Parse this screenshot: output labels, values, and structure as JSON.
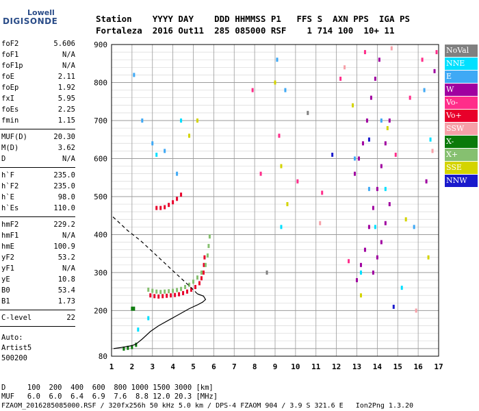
{
  "logo": {
    "top": "Lowell",
    "main": "DIGISONDE"
  },
  "header": {
    "labels": "Station    YYYY DAY    DDD HHMMSS P1   FFS S  AXN PPS  IGA PS",
    "values": "Fortaleza  2016 Out11  285 085000 RSF    1 714 100  10+ 11"
  },
  "params_group1": [
    {
      "name": "foF2",
      "value": "5.606"
    },
    {
      "name": "foF1",
      "value": "N/A"
    },
    {
      "name": "foF1p",
      "value": "N/A"
    },
    {
      "name": "foE",
      "value": "2.11"
    },
    {
      "name": "foEp",
      "value": "1.92"
    },
    {
      "name": "fxI",
      "value": "5.95"
    },
    {
      "name": "foEs",
      "value": "2.25"
    },
    {
      "name": "fmin",
      "value": "1.15"
    }
  ],
  "params_group2": [
    {
      "name": "MUF(D)",
      "value": "20.30"
    },
    {
      "name": "M(D)",
      "value": "3.62"
    },
    {
      "name": "D",
      "value": "N/A"
    }
  ],
  "params_group3": [
    {
      "name": "h`F",
      "value": "235.0"
    },
    {
      "name": "h`F2",
      "value": "235.0"
    },
    {
      "name": "h`E",
      "value": "98.0"
    },
    {
      "name": "h`Es",
      "value": "110.0"
    }
  ],
  "params_group4": [
    {
      "name": "hmF2",
      "value": "229.2"
    },
    {
      "name": "hmF1",
      "value": "N/A"
    },
    {
      "name": "hmE",
      "value": "100.9"
    },
    {
      "name": "yF2",
      "value": "53.2"
    },
    {
      "name": "yF1",
      "value": "N/A"
    },
    {
      "name": "yE",
      "value": "10.8"
    },
    {
      "name": "B0",
      "value": "53.4"
    },
    {
      "name": "B1",
      "value": "1.73"
    }
  ],
  "clevel": {
    "name": "C-level",
    "value": "22"
  },
  "auto": [
    "Auto:",
    "Artist5",
    "500200"
  ],
  "legend": [
    {
      "label": "NoVal",
      "bg": "#808080",
      "fg": "#ffffff"
    },
    {
      "label": "NNE",
      "bg": "#00e0ff",
      "fg": "#ffffff"
    },
    {
      "label": "E",
      "bg": "#3fa9f5",
      "fg": "#ffffff"
    },
    {
      "label": "W",
      "bg": "#a000a0",
      "fg": "#ffffff"
    },
    {
      "label": "Vo-",
      "bg": "#ff2d8a",
      "fg": "#ffffff"
    },
    {
      "label": "Vo+",
      "bg": "#e8002a",
      "fg": "#ffffff"
    },
    {
      "label": "SSW",
      "bg": "#f6a0a8",
      "fg": "#ffffff"
    },
    {
      "label": "X-",
      "bg": "#0a7a0a",
      "fg": "#ffffff"
    },
    {
      "label": "X+",
      "bg": "#86c070",
      "fg": "#ffffff"
    },
    {
      "label": "SSE",
      "bg": "#d4d400",
      "fg": "#ffffff"
    },
    {
      "label": "NNW",
      "bg": "#1a1acc",
      "fg": "#ffffff"
    }
  ],
  "footer": {
    "d_row": "D     100  200  400  600  800 1000 1500 3000 [km]",
    "muf_row": "MUF   6.0  6.0  6.4  6.9  7.6  8.8 12.0 20.3 [MHz]",
    "file_row": "FZAOM_2016285085000.RSF / 320fx256h 50 kHz 5.0 km / DPS-4 FZAOM 904 / 3.9 S 321.6 E   Ion2Png 1.3.20"
  },
  "chart_data": {
    "type": "scatter",
    "title": "",
    "xlabel": "",
    "ylabel": "",
    "xlim": [
      1,
      17
    ],
    "ylim": [
      80,
      900
    ],
    "x_ticks": [
      1,
      2,
      3,
      4,
      5,
      6,
      7,
      8,
      9,
      10,
      11,
      12,
      13,
      14,
      15,
      16,
      17
    ],
    "y_ticks": [
      200,
      300,
      400,
      500,
      600,
      700,
      800,
      900
    ],
    "y_tick_labels": [
      "200",
      "300",
      "400",
      "500",
      "600",
      "700",
      "800",
      "900"
    ],
    "x_tick_labels": [
      "1",
      "2",
      "3",
      "4",
      "5",
      "6",
      "7",
      "8",
      "9",
      "10",
      "11",
      "12",
      "13",
      "14",
      "15",
      "16",
      "17"
    ],
    "y_bottom_label": "80",
    "grid": true,
    "series": [
      {
        "name": "Vo+",
        "color": "#e8002a",
        "points": [
          [
            2.9,
            240
          ],
          [
            3.1,
            238
          ],
          [
            3.3,
            237
          ],
          [
            3.5,
            238
          ],
          [
            3.7,
            239
          ],
          [
            3.9,
            240
          ],
          [
            4.1,
            241
          ],
          [
            4.3,
            243
          ],
          [
            4.5,
            246
          ],
          [
            4.7,
            250
          ],
          [
            4.9,
            255
          ],
          [
            5.1,
            262
          ],
          [
            5.3,
            272
          ],
          [
            5.4,
            285
          ],
          [
            5.5,
            300
          ],
          [
            5.52,
            320
          ],
          [
            5.55,
            340
          ],
          [
            3.2,
            470
          ],
          [
            3.4,
            470
          ],
          [
            3.6,
            472
          ],
          [
            3.8,
            478
          ],
          [
            4.0,
            485
          ],
          [
            4.2,
            494
          ],
          [
            4.4,
            505
          ]
        ]
      },
      {
        "name": "X+",
        "color": "#86c070",
        "points": [
          [
            2.8,
            255
          ],
          [
            3.0,
            252
          ],
          [
            3.2,
            250
          ],
          [
            3.4,
            249
          ],
          [
            3.6,
            250
          ],
          [
            3.8,
            251
          ],
          [
            4.0,
            252
          ],
          [
            4.2,
            254
          ],
          [
            4.4,
            257
          ],
          [
            4.6,
            262
          ],
          [
            4.8,
            268
          ],
          [
            5.0,
            276
          ],
          [
            5.2,
            287
          ],
          [
            5.4,
            300
          ],
          [
            5.6,
            320
          ],
          [
            5.7,
            345
          ],
          [
            5.75,
            370
          ],
          [
            5.8,
            395
          ]
        ]
      },
      {
        "name": "X-",
        "color": "#0a7a0a",
        "points": [
          [
            2.0,
            205
          ],
          [
            2.1,
            205
          ],
          [
            1.6,
            100
          ],
          [
            1.8,
            102
          ],
          [
            2.0,
            104
          ],
          [
            2.2,
            110
          ]
        ]
      },
      {
        "name": "NNE",
        "color": "#00e0ff",
        "points": [
          [
            2.3,
            150
          ],
          [
            2.8,
            180
          ],
          [
            3.2,
            610
          ],
          [
            4.4,
            700
          ],
          [
            9.3,
            420
          ],
          [
            13.2,
            300
          ],
          [
            13.9,
            420
          ],
          [
            14.4,
            520
          ],
          [
            15.2,
            260
          ],
          [
            16.6,
            650
          ]
        ]
      },
      {
        "name": "E",
        "color": "#3fa9f5",
        "points": [
          [
            2.1,
            820
          ],
          [
            2.5,
            700
          ],
          [
            3.0,
            640
          ],
          [
            3.6,
            620
          ],
          [
            4.2,
            560
          ],
          [
            9.1,
            860
          ],
          [
            9.5,
            780
          ],
          [
            12.9,
            600
          ],
          [
            13.6,
            520
          ],
          [
            14.2,
            700
          ],
          [
            15.8,
            420
          ],
          [
            16.3,
            780
          ]
        ]
      },
      {
        "name": "W",
        "color": "#a000a0",
        "points": [
          [
            12.9,
            560
          ],
          [
            13.1,
            600
          ],
          [
            13.3,
            640
          ],
          [
            13.5,
            700
          ],
          [
            13.7,
            760
          ],
          [
            13.9,
            810
          ],
          [
            14.1,
            860
          ],
          [
            13.0,
            280
          ],
          [
            13.2,
            320
          ],
          [
            13.4,
            360
          ],
          [
            13.6,
            420
          ],
          [
            13.8,
            470
          ],
          [
            14.0,
            520
          ],
          [
            14.2,
            580
          ],
          [
            14.4,
            640
          ],
          [
            14.6,
            700
          ],
          [
            13.8,
            300
          ],
          [
            14.0,
            340
          ],
          [
            14.2,
            380
          ],
          [
            14.4,
            430
          ],
          [
            14.6,
            480
          ],
          [
            16.4,
            540
          ],
          [
            16.8,
            830
          ]
        ]
      },
      {
        "name": "Vo-",
        "color": "#ff2d8a",
        "points": [
          [
            7.9,
            780
          ],
          [
            8.3,
            560
          ],
          [
            9.2,
            660
          ],
          [
            10.1,
            540
          ],
          [
            11.3,
            510
          ],
          [
            12.2,
            810
          ],
          [
            12.6,
            330
          ],
          [
            13.4,
            880
          ],
          [
            14.9,
            610
          ],
          [
            15.6,
            760
          ],
          [
            16.2,
            860
          ],
          [
            16.9,
            880
          ]
        ]
      },
      {
        "name": "SSW",
        "color": "#f6a0a8",
        "points": [
          [
            11.2,
            430
          ],
          [
            12.4,
            840
          ],
          [
            14.7,
            890
          ],
          [
            15.9,
            200
          ],
          [
            16.7,
            620
          ]
        ]
      },
      {
        "name": "SSE",
        "color": "#d4d400",
        "points": [
          [
            4.8,
            660
          ],
          [
            5.2,
            700
          ],
          [
            9.0,
            800
          ],
          [
            9.3,
            580
          ],
          [
            9.6,
            480
          ],
          [
            12.8,
            740
          ],
          [
            13.2,
            240
          ],
          [
            14.5,
            680
          ],
          [
            15.4,
            440
          ],
          [
            16.5,
            340
          ]
        ]
      },
      {
        "name": "NNW",
        "color": "#1a1acc",
        "points": [
          [
            11.8,
            610
          ],
          [
            13.6,
            650
          ],
          [
            14.8,
            210
          ]
        ]
      },
      {
        "name": "NoVal",
        "color": "#808080",
        "points": [
          [
            8.6,
            300
          ],
          [
            10.6,
            720
          ]
        ]
      }
    ],
    "profile_solid": [
      [
        1.1,
        100
      ],
      [
        1.6,
        104
      ],
      [
        2.0,
        108
      ],
      [
        2.2,
        112
      ],
      [
        2.5,
        125
      ],
      [
        2.9,
        145
      ],
      [
        3.3,
        160
      ],
      [
        3.8,
        175
      ],
      [
        4.3,
        190
      ],
      [
        4.8,
        205
      ],
      [
        5.2,
        215
      ],
      [
        5.45,
        222
      ],
      [
        5.6,
        229
      ],
      [
        5.5,
        238
      ],
      [
        5.2,
        244
      ]
    ],
    "profile_dashed": [
      [
        5.2,
        244
      ],
      [
        4.9,
        260
      ],
      [
        4.5,
        280
      ],
      [
        4.0,
        305
      ],
      [
        3.5,
        330
      ],
      [
        3.0,
        355
      ],
      [
        2.4,
        385
      ],
      [
        1.8,
        410
      ],
      [
        1.3,
        435
      ],
      [
        1.0,
        450
      ]
    ]
  }
}
